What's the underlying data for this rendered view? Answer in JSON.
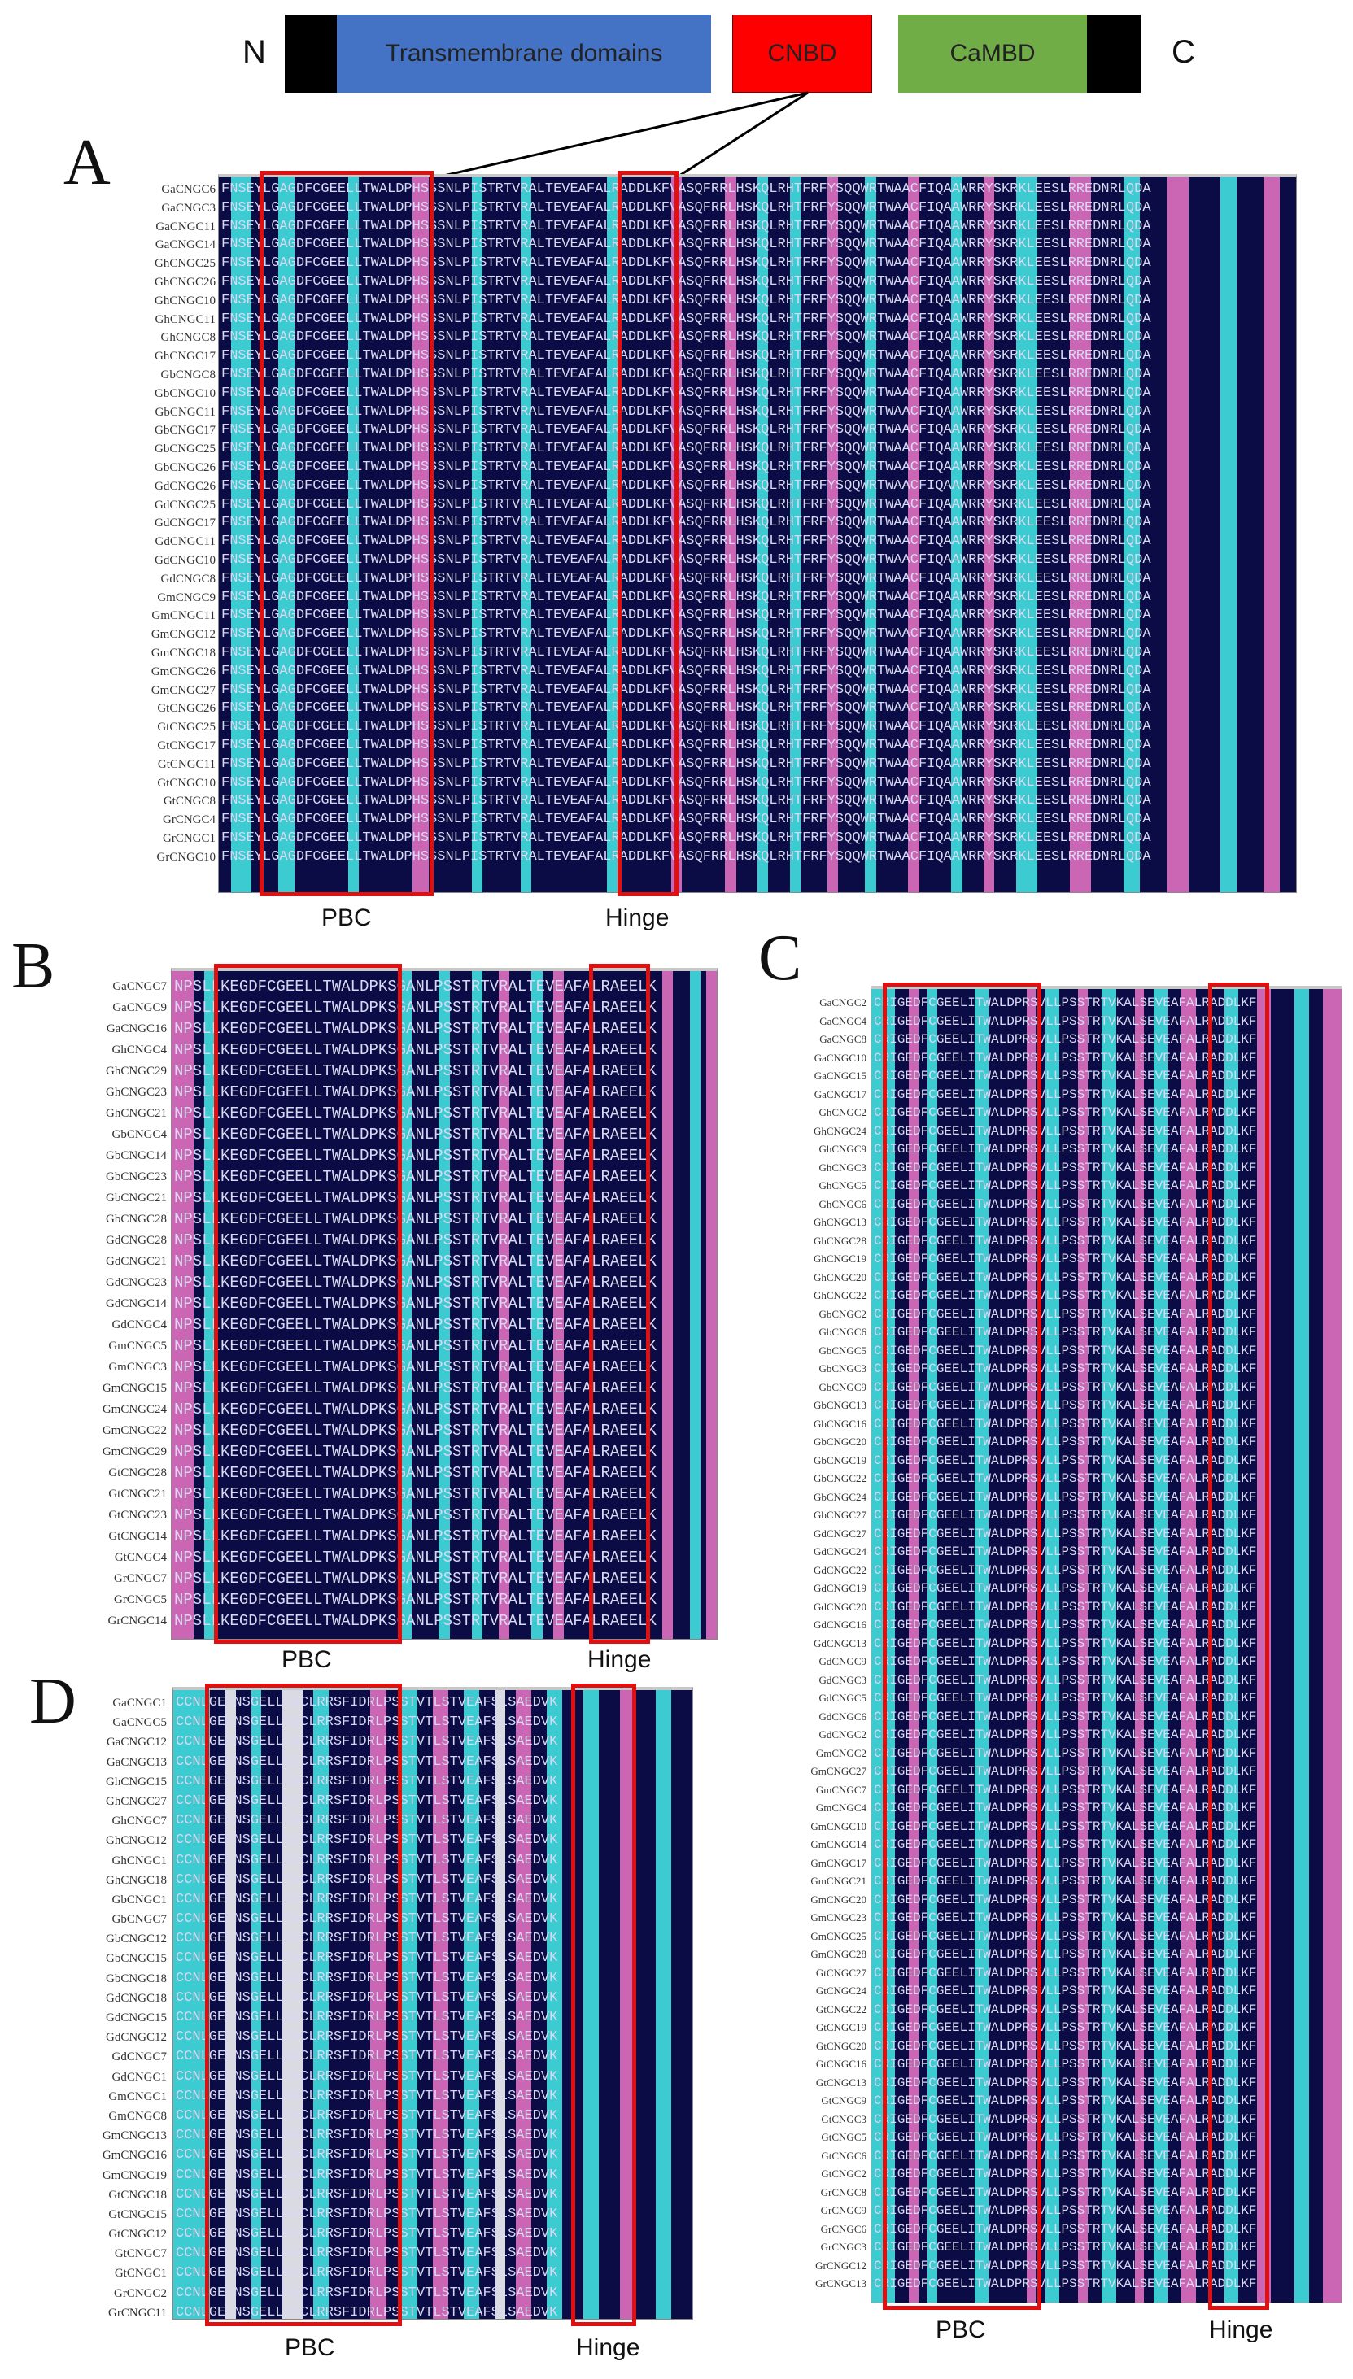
{
  "domain_diagram": {
    "n_label": "N",
    "c_label": "C",
    "tm_label": "Transmembrane domains",
    "cnbd_label": "CNBD",
    "cambd_label": "CaMBD",
    "colors": {
      "tm": "#4472c4",
      "cnbd": "#ff0000",
      "cambd": "#70ad47",
      "cap": "#000000"
    }
  },
  "panel_a": {
    "letter": "A",
    "pbc_label": "PBC",
    "hinge_label": "Hinge",
    "sequence": "FNSEYLGAGDFCGEELLTWALDPHSSSNLPISTRTVRALTEVEAFALRADDLKFVASQFRRLHSKQLRHTFRFYSQQWRTWAACFIQAAWRRYSKRKLEESLRREDNRLQDA",
    "genes": [
      "GaCNGC6",
      "GaCNGC3",
      "GaCNGC11",
      "GaCNGC14",
      "GhCNGC25",
      "GhCNGC26",
      "GhCNGC10",
      "GhCNGC11",
      "GhCNGC8",
      "GhCNGC17",
      "GbCNGC8",
      "GbCNGC10",
      "GbCNGC11",
      "GbCNGC17",
      "GbCNGC25",
      "GbCNGC26",
      "GdCNGC26",
      "GdCNGC25",
      "GdCNGC17",
      "GdCNGC11",
      "GdCNGC10",
      "GdCNGC8",
      "GmCNGC9",
      "GmCNGC11",
      "GmCNGC12",
      "GmCNGC18",
      "GmCNGC26",
      "GmCNGC27",
      "GtCNGC26",
      "GtCNGC25",
      "GtCNGC17",
      "GtCNGC11",
      "GtCNGC10",
      "GtCNGC8",
      "GrCNGC4",
      "GrCNGC1",
      "GrCNGC10"
    ]
  },
  "panel_b": {
    "letter": "B",
    "pbc_label": "PBC",
    "hinge_label": "Hinge",
    "sequence": "NPSLLKEGDFCGEELLTWALDPKSGANLPSSTRTVRALTEVEAFALRAEELK",
    "genes": [
      "GaCNGC7",
      "GaCNGC9",
      "GaCNGC16",
      "GhCNGC4",
      "GhCNGC29",
      "GhCNGC23",
      "GhCNGC21",
      "GbCNGC4",
      "GbCNGC14",
      "GbCNGC23",
      "GbCNGC21",
      "GbCNGC28",
      "GdCNGC28",
      "GdCNGC21",
      "GdCNGC23",
      "GdCNGC14",
      "GdCNGC4",
      "GmCNGC5",
      "GmCNGC3",
      "GmCNGC15",
      "GmCNGC24",
      "GmCNGC22",
      "GmCNGC29",
      "GtCNGC28",
      "GtCNGC21",
      "GtCNGC23",
      "GtCNGC14",
      "GtCNGC4",
      "GrCNGC7",
      "GrCNGC5",
      "GrCNGC14"
    ]
  },
  "panel_c": {
    "letter": "C",
    "pbc_label": "PBC",
    "hinge_label": "Hinge",
    "sequence": "CRIGEDFCGEELITWALDPRSVLLPSSTRTVKALSEVEAFALRADDLKF",
    "genes": [
      "GaCNGC2",
      "GaCNGC4",
      "GaCNGC8",
      "GaCNGC10",
      "GaCNGC15",
      "GaCNGC17",
      "GhCNGC2",
      "GhCNGC24",
      "GhCNGC9",
      "GhCNGC3",
      "GhCNGC5",
      "GhCNGC6",
      "GhCNGC13",
      "GhCNGC28",
      "GhCNGC19",
      "GhCNGC20",
      "GhCNGC22",
      "GbCNGC2",
      "GbCNGC6",
      "GbCNGC5",
      "GbCNGC3",
      "GbCNGC9",
      "GbCNGC13",
      "GbCNGC16",
      "GbCNGC20",
      "GbCNGC19",
      "GbCNGC22",
      "GbCNGC24",
      "GbCNGC27",
      "GdCNGC27",
      "GdCNGC24",
      "GdCNGC22",
      "GdCNGC19",
      "GdCNGC20",
      "GdCNGC16",
      "GdCNGC13",
      "GdCNGC9",
      "GdCNGC3",
      "GdCNGC5",
      "GdCNGC6",
      "GdCNGC2",
      "GmCNGC2",
      "GmCNGC27",
      "GmCNGC7",
      "GmCNGC4",
      "GmCNGC10",
      "GmCNGC14",
      "GmCNGC17",
      "GmCNGC21",
      "GmCNGC20",
      "GmCNGC23",
      "GmCNGC25",
      "GmCNGC28",
      "GtCNGC27",
      "GtCNGC24",
      "GtCNGC22",
      "GtCNGC19",
      "GtCNGC20",
      "GtCNGC16",
      "GtCNGC13",
      "GtCNGC9",
      "GtCNGC3",
      "GtCNGC5",
      "GtCNGC6",
      "GtCNGC2",
      "GrCNGC8",
      "GrCNGC9",
      "GrCNGC6",
      "GrCNGC3",
      "GrCNGC12",
      "GrCNGC13"
    ]
  },
  "panel_d": {
    "letter": "D",
    "pbc_label": "PBC",
    "hinge_label": "Hinge",
    "sequence": "CCNLGEGNSGELLSWCLRRSFIDRLPSSTVTLSTVEAFSLSAEDVK",
    "genes": [
      "GaCNGC1",
      "GaCNGC5",
      "GaCNGC12",
      "GaCNGC13",
      "GhCNGC15",
      "GhCNGC27",
      "GhCNGC7",
      "GhCNGC12",
      "GhCNGC1",
      "GhCNGC18",
      "GbCNGC1",
      "GbCNGC7",
      "GbCNGC12",
      "GbCNGC15",
      "GbCNGC18",
      "GdCNGC18",
      "GdCNGC15",
      "GdCNGC12",
      "GdCNGC7",
      "GdCNGC1",
      "GmCNGC1",
      "GmCNGC8",
      "GmCNGC13",
      "GmCNGC16",
      "GmCNGC19",
      "GtCNGC18",
      "GtCNGC15",
      "GtCNGC12",
      "GtCNGC7",
      "GtCNGC1",
      "GrCNGC2",
      "GrCNGC11"
    ]
  }
}
